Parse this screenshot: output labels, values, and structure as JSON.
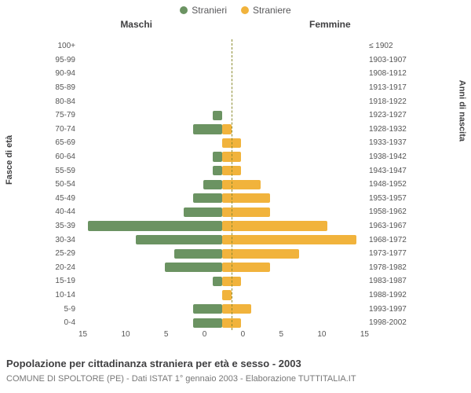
{
  "legend": {
    "male": {
      "label": "Stranieri",
      "color": "#6b9362"
    },
    "female": {
      "label": "Straniere",
      "color": "#f1b33c"
    }
  },
  "titles": {
    "left_column": "Maschi",
    "right_column": "Femmine",
    "left_axis": "Fasce di età",
    "right_axis": "Anni di nascita"
  },
  "caption": "Popolazione per cittadinanza straniera per età e sesso - 2003",
  "subcaption": "COMUNE DI SPOLTORE (PE) - Dati ISTAT 1° gennaio 2003 - Elaborazione TUTTITALIA.IT",
  "chart": {
    "type": "population-pyramid",
    "x_max": 15,
    "x_ticks": [
      15,
      10,
      5,
      0,
      0,
      5,
      10,
      15
    ],
    "bar_height_pct": 70,
    "background_color": "#ffffff",
    "zero_line_color": "#8a8a2e",
    "tick_font_size": 10,
    "tick_color": "#555555",
    "rows": [
      {
        "age": "100+",
        "birth": "≤ 1902",
        "m": 0,
        "f": 0
      },
      {
        "age": "95-99",
        "birth": "1903-1907",
        "m": 0,
        "f": 0
      },
      {
        "age": "90-94",
        "birth": "1908-1912",
        "m": 0,
        "f": 0
      },
      {
        "age": "85-89",
        "birth": "1913-1917",
        "m": 0,
        "f": 0
      },
      {
        "age": "80-84",
        "birth": "1918-1922",
        "m": 0,
        "f": 0
      },
      {
        "age": "75-79",
        "birth": "1923-1927",
        "m": 1,
        "f": 0
      },
      {
        "age": "70-74",
        "birth": "1928-1932",
        "m": 3,
        "f": 1
      },
      {
        "age": "65-69",
        "birth": "1933-1937",
        "m": 0,
        "f": 2
      },
      {
        "age": "60-64",
        "birth": "1938-1942",
        "m": 1,
        "f": 2
      },
      {
        "age": "55-59",
        "birth": "1943-1947",
        "m": 1,
        "f": 2
      },
      {
        "age": "50-54",
        "birth": "1948-1952",
        "m": 2,
        "f": 4
      },
      {
        "age": "45-49",
        "birth": "1953-1957",
        "m": 3,
        "f": 5
      },
      {
        "age": "40-44",
        "birth": "1958-1962",
        "m": 4,
        "f": 5
      },
      {
        "age": "35-39",
        "birth": "1963-1967",
        "m": 14,
        "f": 11
      },
      {
        "age": "30-34",
        "birth": "1968-1972",
        "m": 9,
        "f": 14
      },
      {
        "age": "25-29",
        "birth": "1973-1977",
        "m": 5,
        "f": 8
      },
      {
        "age": "20-24",
        "birth": "1978-1982",
        "m": 6,
        "f": 5
      },
      {
        "age": "15-19",
        "birth": "1983-1987",
        "m": 1,
        "f": 2
      },
      {
        "age": "10-14",
        "birth": "1988-1992",
        "m": 0,
        "f": 1
      },
      {
        "age": "5-9",
        "birth": "1993-1997",
        "m": 3,
        "f": 3
      },
      {
        "age": "0-4",
        "birth": "1998-2002",
        "m": 3,
        "f": 2
      }
    ]
  }
}
